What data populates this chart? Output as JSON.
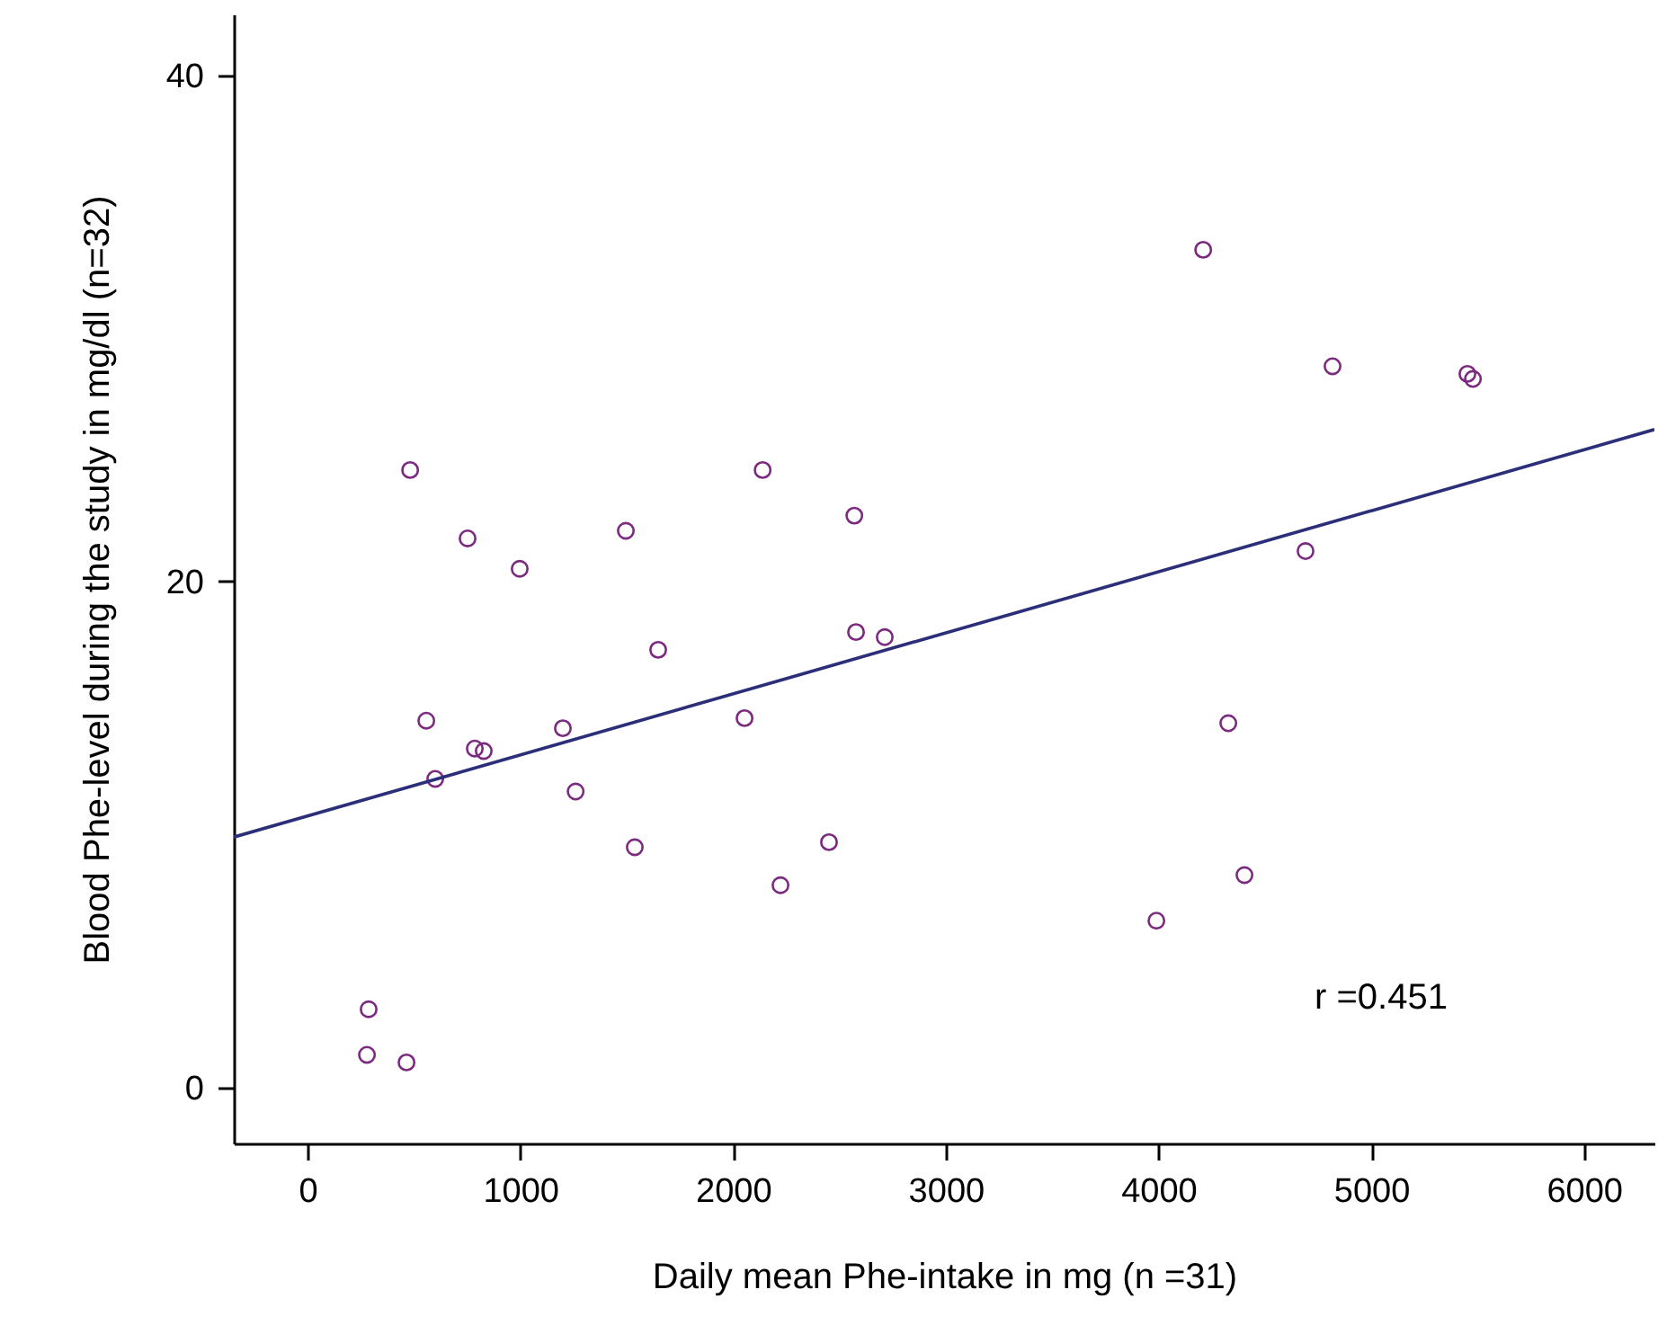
{
  "chart_data": {
    "type": "scatter",
    "xlabel": "Daily mean Phe-intake in mg (n =31)",
    "ylabel": "Blood Phe-level during the study in mg/dl (n=32)",
    "xlim": [
      -347,
      6331
    ],
    "ylim": [
      -2.2,
      42.4
    ],
    "xticks": [
      0,
      1000,
      2000,
      3000,
      4000,
      5000,
      6000
    ],
    "yticks": [
      0,
      20,
      40
    ],
    "grid": false,
    "marker": "circle",
    "annotations": [
      "r =0.451"
    ],
    "series": [
      {
        "color": "#7b2a7f",
        "x": [
          287,
          279,
          465,
          482,
          558,
          600,
          752,
          786,
          828,
          997,
          1200,
          1260,
          1496,
          1538,
          1648,
          2054,
          2139,
          2223,
          2451,
          2570,
          2578,
          2713,
          3990,
          4210,
          4328,
          4404,
          4691,
          4818,
          5452,
          5478
        ],
        "values": [
          3.1,
          1.3,
          1.0,
          24.4,
          14.5,
          12.2,
          21.7,
          13.4,
          13.3,
          20.5,
          14.2,
          11.7,
          22.0,
          9.5,
          17.3,
          14.6,
          24.4,
          8.0,
          9.7,
          22.6,
          18.0,
          17.8,
          6.6,
          33.1,
          14.4,
          8.4,
          21.2,
          28.5,
          28.2,
          28.0
        ]
      },
      {
        "type": "line",
        "marker": "none",
        "color": "#2b2f7a",
        "x": [
          -347,
          6331
        ],
        "values": [
          9.9,
          26.0
        ]
      }
    ]
  }
}
